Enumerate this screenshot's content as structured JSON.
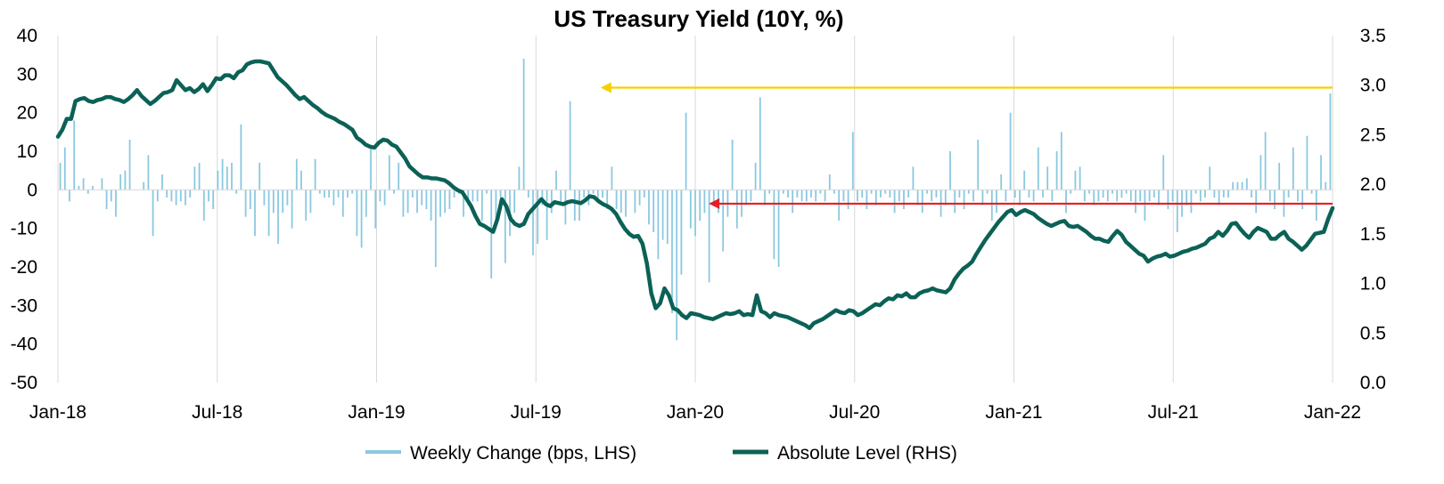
{
  "chart_data": {
    "type": "bar+line",
    "title": "US Treasury Yield (10Y, %)",
    "x_tick_labels": [
      "Jan-18",
      "Jul-18",
      "Jan-19",
      "Jul-19",
      "Jan-20",
      "Jul-20",
      "Jan-21",
      "Jul-21",
      "Jan-22"
    ],
    "x_range": [
      "2018-01-01",
      "2022-01-01"
    ],
    "y_left": {
      "range": [
        -50,
        40
      ],
      "ticks": [
        "40",
        "30",
        "20",
        "10",
        "0",
        "-10",
        "-20",
        "-30",
        "-40",
        "-50"
      ]
    },
    "y_right": {
      "range": [
        0.0,
        3.5
      ],
      "ticks": [
        "3.5",
        "3.0",
        "2.5",
        "2.0",
        "1.5",
        "1.0",
        "0.5",
        "0.0"
      ]
    },
    "grid": "vertical",
    "legend_position": "bottom",
    "series": [
      {
        "name": "Weekly Change (bps, LHS)",
        "type": "bar",
        "axis": "left",
        "color": "#8ac8e0",
        "values": [
          7,
          11,
          -3,
          18,
          1,
          3,
          -1,
          1,
          0,
          3,
          -5,
          -3,
          -7,
          4,
          5,
          13,
          0,
          0,
          2,
          9,
          -12,
          -3,
          4,
          -2,
          -3,
          -4,
          -3,
          -4,
          -2,
          6,
          7,
          -8,
          -3,
          -5,
          5,
          8,
          6,
          7,
          -1,
          17,
          -7,
          -5,
          -12,
          7,
          -4,
          -12,
          -6,
          -14,
          -6,
          -4,
          -10,
          8,
          5,
          -8,
          -6,
          8,
          -1,
          -2,
          -2,
          -4,
          -2,
          -7,
          -2,
          -1,
          -12,
          -15,
          -7,
          11,
          -10,
          -3,
          -4,
          9,
          -1,
          7,
          -7,
          -6,
          -2,
          -6,
          -4,
          -5,
          -8,
          -20,
          -7,
          -6,
          -5,
          -2,
          -1,
          -7,
          -4,
          -3,
          -3,
          -8,
          -1,
          -23,
          -10,
          -2,
          -19,
          -12,
          -6,
          6,
          34,
          -2,
          -17,
          -14,
          -4,
          -13,
          -6,
          5,
          -3,
          -9,
          23,
          -8,
          -8,
          -2,
          -4,
          -1,
          -3,
          -2,
          -5,
          6,
          -5,
          -6,
          -7,
          0,
          -6,
          -4,
          -2,
          -9,
          -11,
          -18,
          -13,
          -14,
          -32,
          -39,
          -22,
          20,
          -10,
          -12,
          -8,
          -6,
          -24,
          -3,
          -6,
          -16,
          -7,
          13,
          -10,
          -7,
          -4,
          -3,
          7,
          24,
          -4,
          -1,
          -18,
          -20,
          -1,
          -2,
          -6,
          -2,
          -3,
          -3,
          -2,
          -3,
          -1,
          -3,
          4,
          -1,
          -8,
          -3,
          -5,
          15,
          -3,
          -2,
          -5,
          -1,
          -4,
          -2,
          -1,
          -2,
          -6,
          -3,
          -5,
          -2,
          6,
          -4,
          -6,
          -1,
          -3,
          -2,
          -7,
          -4,
          10,
          -6,
          -2,
          -5,
          -1,
          -3,
          13,
          -4,
          -1,
          -8,
          -6,
          4,
          -3,
          20,
          -2,
          -4,
          5,
          -2,
          -3,
          11,
          -2,
          6,
          -3,
          10,
          15,
          -6,
          -1,
          5,
          6,
          -3,
          -1,
          -4,
          -3,
          -2,
          -3,
          -1,
          -3,
          -2,
          -1,
          -3,
          -6,
          -3,
          -8,
          -3,
          -2,
          -4,
          9,
          -5,
          -3,
          -11,
          -7,
          -4,
          -6,
          -1,
          -3,
          -2,
          6,
          -2,
          -4,
          -2,
          -2,
          2,
          2,
          2,
          3,
          -2,
          -6,
          9,
          15,
          -3,
          -5,
          7,
          -7,
          -2,
          11,
          -3,
          -5,
          14,
          -1,
          -8,
          9,
          2,
          25
        ]
      },
      {
        "name": "Absolute Level (RHS)",
        "type": "line",
        "axis": "right",
        "color": "#0b6156",
        "values": [
          2.48,
          2.55,
          2.66,
          2.66,
          2.84,
          2.86,
          2.87,
          2.84,
          2.83,
          2.85,
          2.86,
          2.88,
          2.88,
          2.86,
          2.85,
          2.83,
          2.86,
          2.9,
          2.95,
          2.89,
          2.85,
          2.81,
          2.84,
          2.88,
          2.92,
          2.93,
          2.95,
          3.05,
          3.0,
          2.95,
          2.97,
          2.93,
          2.96,
          3.01,
          2.94,
          3.0,
          3.07,
          3.06,
          3.1,
          3.1,
          3.07,
          3.13,
          3.15,
          3.21,
          3.23,
          3.24,
          3.24,
          3.23,
          3.22,
          3.15,
          3.08,
          3.04,
          3.0,
          2.95,
          2.9,
          2.86,
          2.88,
          2.84,
          2.8,
          2.77,
          2.73,
          2.7,
          2.68,
          2.66,
          2.63,
          2.61,
          2.58,
          2.55,
          2.47,
          2.44,
          2.4,
          2.38,
          2.37,
          2.42,
          2.45,
          2.44,
          2.4,
          2.38,
          2.32,
          2.26,
          2.18,
          2.14,
          2.1,
          2.07,
          2.07,
          2.06,
          2.06,
          2.05,
          2.04,
          2.01,
          1.97,
          1.94,
          1.92,
          1.85,
          1.78,
          1.68,
          1.6,
          1.58,
          1.55,
          1.52,
          1.65,
          1.85,
          1.78,
          1.65,
          1.6,
          1.58,
          1.6,
          1.7,
          1.75,
          1.8,
          1.85,
          1.8,
          1.78,
          1.82,
          1.81,
          1.8,
          1.82,
          1.83,
          1.82,
          1.81,
          1.84,
          1.88,
          1.87,
          1.83,
          1.8,
          1.78,
          1.75,
          1.7,
          1.62,
          1.55,
          1.5,
          1.47,
          1.48,
          1.4,
          1.2,
          0.9,
          0.75,
          0.8,
          0.95,
          0.88,
          0.75,
          0.73,
          0.68,
          0.65,
          0.7,
          0.69,
          0.68,
          0.66,
          0.65,
          0.64,
          0.66,
          0.68,
          0.7,
          0.69,
          0.7,
          0.72,
          0.68,
          0.69,
          0.68,
          0.88,
          0.72,
          0.7,
          0.66,
          0.7,
          0.68,
          0.67,
          0.66,
          0.64,
          0.62,
          0.6,
          0.58,
          0.55,
          0.6,
          0.62,
          0.64,
          0.67,
          0.7,
          0.73,
          0.71,
          0.7,
          0.73,
          0.72,
          0.68,
          0.7,
          0.73,
          0.76,
          0.79,
          0.78,
          0.82,
          0.85,
          0.84,
          0.88,
          0.87,
          0.9,
          0.86,
          0.86,
          0.9,
          0.92,
          0.93,
          0.95,
          0.93,
          0.92,
          0.91,
          0.95,
          1.04,
          1.1,
          1.15,
          1.18,
          1.22,
          1.3,
          1.37,
          1.44,
          1.5,
          1.56,
          1.62,
          1.67,
          1.72,
          1.74,
          1.69,
          1.72,
          1.74,
          1.72,
          1.7,
          1.66,
          1.63,
          1.6,
          1.58,
          1.6,
          1.62,
          1.63,
          1.58,
          1.57,
          1.58,
          1.55,
          1.52,
          1.48,
          1.45,
          1.45,
          1.43,
          1.42,
          1.48,
          1.53,
          1.49,
          1.42,
          1.38,
          1.34,
          1.3,
          1.28,
          1.22,
          1.25,
          1.27,
          1.28,
          1.3,
          1.27,
          1.28,
          1.3,
          1.32,
          1.33,
          1.35,
          1.36,
          1.38,
          1.4,
          1.45,
          1.47,
          1.52,
          1.48,
          1.53,
          1.6,
          1.61,
          1.55,
          1.5,
          1.46,
          1.52,
          1.56,
          1.54,
          1.52,
          1.45,
          1.45,
          1.49,
          1.52,
          1.45,
          1.42,
          1.38,
          1.34,
          1.38,
          1.44,
          1.5,
          1.51,
          1.52,
          1.65,
          1.76
        ]
      }
    ],
    "annotations": [
      {
        "type": "arrow",
        "color": "#f5d000",
        "direction": "left",
        "from_date": "2022-01-01",
        "to_date": "2019-09-15",
        "level_left": 26.5,
        "level_right": 2.98
      },
      {
        "type": "arrow",
        "color": "#e81e25",
        "direction": "left",
        "from_date": "2022-01-01",
        "to_date": "2020-01-17",
        "level_left": -3.6,
        "level_right": 1.77
      }
    ]
  }
}
